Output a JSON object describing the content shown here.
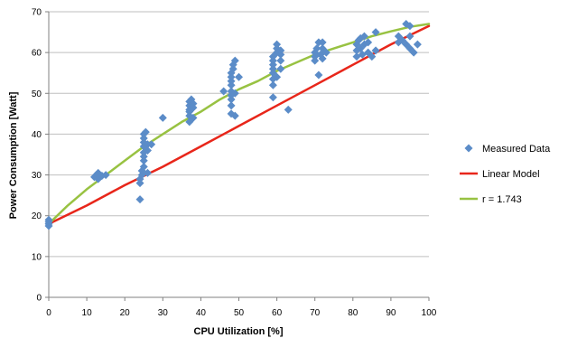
{
  "chart_data": {
    "type": "scatter",
    "xlabel": "CPU Utilization [%]",
    "ylabel": "Power Consumption [Watt]",
    "xlim": [
      0,
      100
    ],
    "ylim": [
      0,
      70
    ],
    "xticks": [
      0,
      10,
      20,
      30,
      40,
      50,
      60,
      70,
      80,
      90,
      100
    ],
    "yticks": [
      0,
      10,
      20,
      30,
      40,
      50,
      60,
      70
    ],
    "grid": "horizontal",
    "legend_position": "right",
    "series": [
      {
        "name": "Measured Data",
        "kind": "scatter",
        "marker": "diamond",
        "color": "#5b8cc8",
        "points": [
          [
            0,
            17.5
          ],
          [
            0,
            18
          ],
          [
            0,
            18.5
          ],
          [
            0,
            19
          ],
          [
            12,
            29.5
          ],
          [
            12.5,
            30
          ],
          [
            13,
            30.5
          ],
          [
            13,
            29
          ],
          [
            14,
            29.8
          ],
          [
            15,
            30
          ],
          [
            24,
            24
          ],
          [
            24,
            28
          ],
          [
            24,
            29
          ],
          [
            24.5,
            30
          ],
          [
            24.5,
            31
          ],
          [
            25,
            32
          ],
          [
            25,
            33.5
          ],
          [
            25,
            34.5
          ],
          [
            25,
            35.5
          ],
          [
            25,
            37
          ],
          [
            25,
            38
          ],
          [
            25,
            39
          ],
          [
            25,
            40
          ],
          [
            25.5,
            40.5
          ],
          [
            26,
            36
          ],
          [
            26,
            37.5
          ],
          [
            26,
            30.5
          ],
          [
            27,
            37.5
          ],
          [
            30,
            44
          ],
          [
            37,
            43
          ],
          [
            37,
            44.5
          ],
          [
            37,
            45.5
          ],
          [
            37,
            46
          ],
          [
            37,
            47
          ],
          [
            37,
            48
          ],
          [
            37.5,
            48.5
          ],
          [
            38,
            46.5
          ],
          [
            38,
            44
          ],
          [
            38,
            47.5
          ],
          [
            46,
            50.5
          ],
          [
            48,
            45
          ],
          [
            48,
            47
          ],
          [
            48,
            48.5
          ],
          [
            48,
            49.5
          ],
          [
            48,
            50.5
          ],
          [
            48,
            52
          ],
          [
            48,
            53
          ],
          [
            48,
            54
          ],
          [
            48,
            55
          ],
          [
            48.5,
            56
          ],
          [
            48.5,
            57
          ],
          [
            49,
            58
          ],
          [
            49,
            44.5
          ],
          [
            49,
            50
          ],
          [
            50,
            54
          ],
          [
            59,
            49
          ],
          [
            59,
            52
          ],
          [
            59,
            53.5
          ],
          [
            59,
            55
          ],
          [
            59,
            56
          ],
          [
            59,
            57
          ],
          [
            59,
            58
          ],
          [
            59,
            59
          ],
          [
            60,
            60
          ],
          [
            60,
            61
          ],
          [
            60,
            62
          ],
          [
            60,
            54
          ],
          [
            61,
            56
          ],
          [
            61,
            58
          ],
          [
            61,
            59.5
          ],
          [
            61,
            60.5
          ],
          [
            63,
            46
          ],
          [
            70,
            58
          ],
          [
            70,
            59
          ],
          [
            70,
            60
          ],
          [
            70.5,
            61
          ],
          [
            71,
            62.5
          ],
          [
            71,
            54.5
          ],
          [
            71.5,
            59.5
          ],
          [
            72,
            58.5
          ],
          [
            72,
            61
          ],
          [
            72,
            62.5
          ],
          [
            73,
            60
          ],
          [
            81,
            59
          ],
          [
            81,
            60.5
          ],
          [
            81,
            62
          ],
          [
            81.5,
            63
          ],
          [
            82,
            63.5
          ],
          [
            82,
            61
          ],
          [
            82.5,
            59.5
          ],
          [
            83,
            62
          ],
          [
            83,
            64
          ],
          [
            84,
            60
          ],
          [
            84,
            62.5
          ],
          [
            85,
            59
          ],
          [
            86,
            60.5
          ],
          [
            86,
            65
          ],
          [
            92,
            62.5
          ],
          [
            92,
            64
          ],
          [
            93,
            63
          ],
          [
            94,
            62
          ],
          [
            94,
            67
          ],
          [
            95,
            64
          ],
          [
            95,
            61
          ],
          [
            95,
            66.5
          ],
          [
            96,
            60
          ],
          [
            97,
            62
          ]
        ]
      },
      {
        "name": "Linear Model",
        "kind": "line",
        "color": "#e8261a",
        "points": [
          [
            0,
            18
          ],
          [
            10,
            22.5
          ],
          [
            20,
            27.5
          ],
          [
            30,
            32
          ],
          [
            40,
            37
          ],
          [
            50,
            42
          ],
          [
            60,
            47
          ],
          [
            70,
            52
          ],
          [
            80,
            57
          ],
          [
            90,
            62
          ],
          [
            100,
            66.5
          ]
        ]
      },
      {
        "name": "r = 1.743",
        "kind": "line",
        "color": "#98c242",
        "points": [
          [
            0,
            18
          ],
          [
            5,
            22.5
          ],
          [
            10,
            26.5
          ],
          [
            15,
            30
          ],
          [
            20,
            33.5
          ],
          [
            25,
            37
          ],
          [
            30,
            40
          ],
          [
            35,
            43
          ],
          [
            40,
            45.5
          ],
          [
            45,
            48.5
          ],
          [
            50,
            51
          ],
          [
            55,
            53
          ],
          [
            60,
            55.5
          ],
          [
            65,
            57.5
          ],
          [
            70,
            59.5
          ],
          [
            75,
            61
          ],
          [
            80,
            62.5
          ],
          [
            85,
            64
          ],
          [
            90,
            65.2
          ],
          [
            95,
            66.3
          ],
          [
            100,
            67
          ]
        ]
      }
    ]
  }
}
